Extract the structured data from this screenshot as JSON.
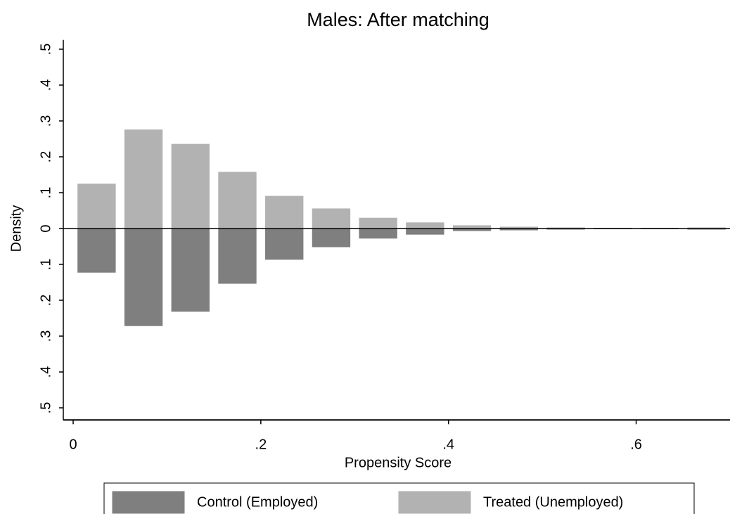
{
  "chart_data": {
    "type": "histogram",
    "title": "Males: After matching",
    "x_label": "Propensity Score",
    "y_label": "Density",
    "bins": [
      0,
      0.05,
      0.1,
      0.15,
      0.2,
      0.25,
      0.3,
      0.35,
      0.4,
      0.45,
      0.5,
      0.55,
      0.6,
      0.65,
      0.7
    ],
    "series": [
      {
        "name": "Control (Employed)",
        "color": "#7f7f7f",
        "values": [
          -0.122,
          -0.271,
          -0.231,
          -0.153,
          -0.086,
          -0.051,
          -0.027,
          -0.016,
          -0.006,
          -0.004,
          -0.002,
          -0.001,
          -0.001,
          -0.002
        ]
      },
      {
        "name": "Treated (Unemployed)",
        "color": "#b2b2b2",
        "values": [
          0.124,
          0.275,
          0.235,
          0.157,
          0.09,
          0.055,
          0.029,
          0.016,
          0.008,
          0.004,
          0.002,
          0.001,
          0.001,
          0.002
        ]
      }
    ],
    "xlim": [
      -0.0105,
      0.7
    ],
    "xticks": [
      0,
      {
        "value": 0.2,
        "label": ".2"
      },
      {
        "value": 0.4,
        "label": ".4"
      },
      {
        "value": 0.6,
        "label": ".6"
      }
    ],
    "ylim": [
      -0.53,
      0.53
    ],
    "yticks": [
      {
        "value": 0.5,
        "label": ".5"
      },
      {
        "value": 0.4,
        "label": ".4"
      },
      {
        "value": 0.3,
        "label": ".3"
      },
      {
        "value": 0.2,
        "label": ".2"
      },
      {
        "value": 0.1,
        "label": ".1"
      },
      0,
      {
        "value": -0.1,
        "label": ".1"
      },
      {
        "value": -0.2,
        "label": ".2"
      },
      {
        "value": -0.3,
        "label": ".3"
      },
      {
        "value": -0.4,
        "label": ".4"
      },
      {
        "value": -0.5,
        "label": ".5"
      }
    ],
    "grid": false,
    "legend": "bottom"
  }
}
